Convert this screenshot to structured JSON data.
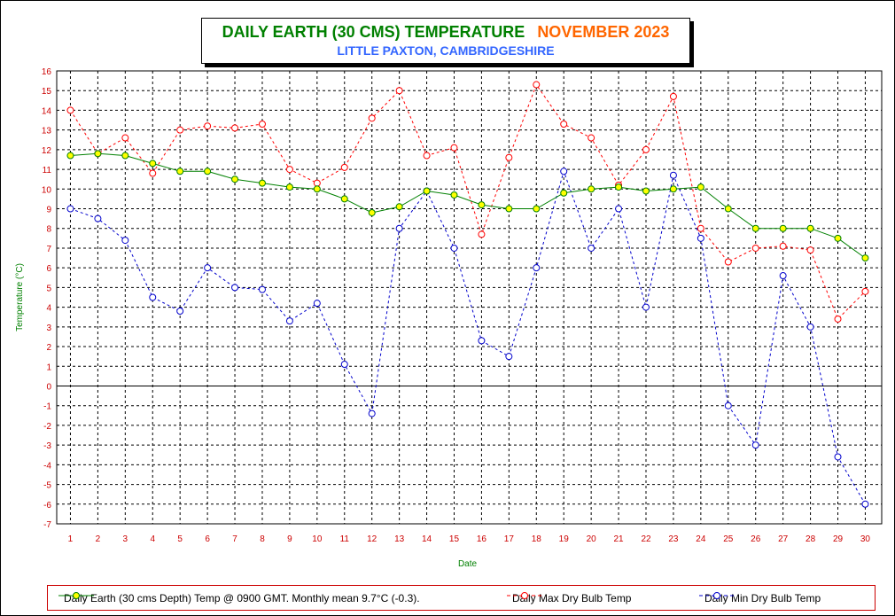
{
  "header": {
    "title": "DAILY EARTH (30 CMS) TEMPERATURE",
    "month": "NOVEMBER 2023",
    "subtitle": "LITTLE PAXTON, CAMBRIDGESHIRE"
  },
  "colors": {
    "earth_line": "#008000",
    "earth_marker": "#ffff00",
    "max_line": "#ff0000",
    "min_line": "#0000cc",
    "axis_text": "#cc0000",
    "axis_label": "#008000"
  },
  "chart_data": {
    "type": "line",
    "xlabel": "Date",
    "ylabel": "Temperature (°C)",
    "ylim": [
      -7,
      16
    ],
    "x": [
      1,
      2,
      3,
      4,
      5,
      6,
      7,
      8,
      9,
      10,
      11,
      12,
      13,
      14,
      15,
      16,
      17,
      18,
      19,
      20,
      21,
      22,
      23,
      24,
      25,
      26,
      27,
      28,
      29,
      30
    ],
    "grid": true,
    "legend_position": "bottom",
    "series": [
      {
        "name": "Daily Earth (30 cms Depth) Temp @ 0900 GMT. Monthly mean 9.7°C (-0.3).",
        "values": [
          11.7,
          11.8,
          11.7,
          11.3,
          10.9,
          10.9,
          10.5,
          10.3,
          10.1,
          10.0,
          9.5,
          8.8,
          9.1,
          9.9,
          9.7,
          9.2,
          9.0,
          9.0,
          9.8,
          10.0,
          10.1,
          9.9,
          10.0,
          10.1,
          9.0,
          8.0,
          8.0,
          8.0,
          7.5,
          6.5
        ]
      },
      {
        "name": "Daily Max Dry Bulb Temp",
        "values": [
          14.0,
          11.8,
          12.6,
          10.8,
          13.0,
          13.2,
          13.1,
          13.3,
          11.0,
          10.3,
          11.1,
          13.6,
          15.0,
          11.7,
          12.1,
          7.7,
          11.6,
          15.3,
          13.3,
          12.6,
          10.2,
          12.0,
          14.7,
          8.0,
          6.3,
          7.0,
          7.1,
          6.9,
          3.4,
          4.8
        ]
      },
      {
        "name": "Daily Min Dry Bulb Temp",
        "values": [
          9.0,
          8.5,
          7.4,
          4.5,
          3.8,
          6.0,
          5.0,
          4.9,
          3.3,
          4.2,
          1.1,
          -1.4,
          8.0,
          9.9,
          7.0,
          2.3,
          1.5,
          6.0,
          10.9,
          7.0,
          9.0,
          4.0,
          10.7,
          7.5,
          -1.0,
          -3.0,
          5.6,
          3.0,
          -3.6,
          -6.0
        ]
      }
    ]
  }
}
